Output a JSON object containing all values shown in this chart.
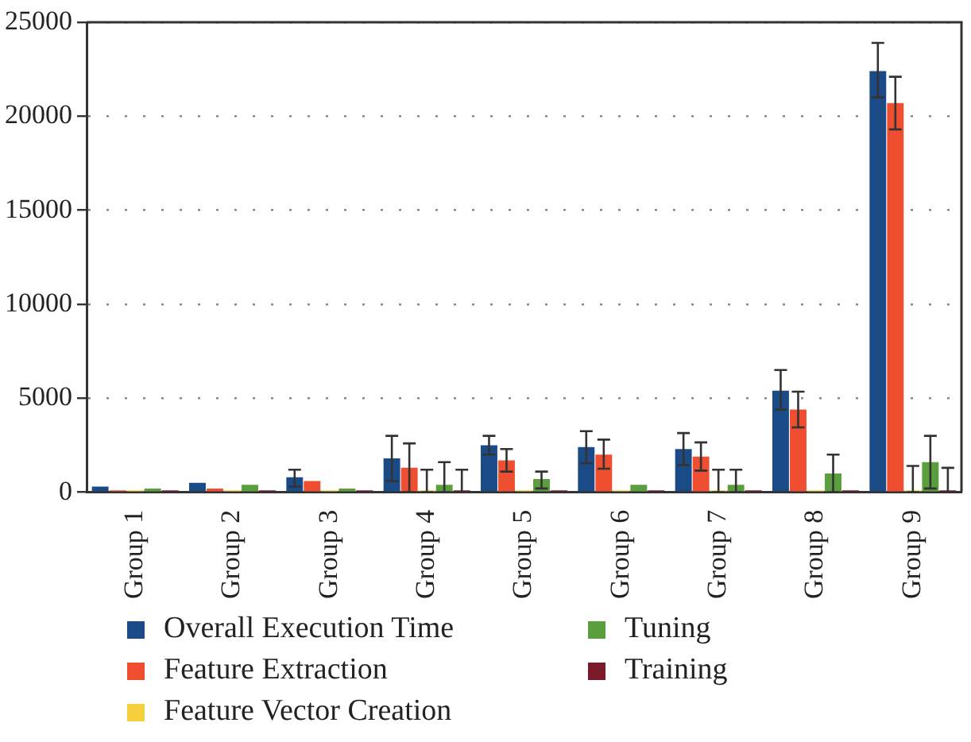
{
  "chart_data": {
    "type": "bar",
    "categories": [
      "Group 1",
      "Group 2",
      "Group 3",
      "Group 4",
      "Group 5",
      "Group 6",
      "Group 7",
      "Group 8",
      "Group 9"
    ],
    "series": [
      {
        "name": "Overall Execution Time",
        "color": "#1a4b87",
        "values": [
          300,
          500,
          800,
          1800,
          2500,
          2400,
          2300,
          5400,
          22400
        ],
        "errors": [
          null,
          null,
          [
            300,
            1200
          ],
          [
            600,
            3000
          ],
          [
            2000,
            3000
          ],
          [
            1550,
            3250
          ],
          [
            1450,
            3150
          ],
          [
            4400,
            6500
          ],
          [
            21000,
            23900
          ]
        ]
      },
      {
        "name": "Feature Extraction",
        "color": "#f04e30",
        "values": [
          100,
          200,
          600,
          1300,
          1700,
          2000,
          1900,
          4400,
          20700
        ],
        "errors": [
          null,
          null,
          null,
          [
            0,
            2600
          ],
          [
            1100,
            2300
          ],
          [
            1250,
            2800
          ],
          [
            1150,
            2650
          ],
          [
            3450,
            5350
          ],
          [
            19300,
            22100
          ]
        ]
      },
      {
        "name": "Feature Vector Creation",
        "color": "#f6d03c",
        "values": [
          100,
          100,
          100,
          100,
          100,
          100,
          100,
          100,
          100
        ],
        "errors": [
          null,
          null,
          null,
          [
            0,
            1200
          ],
          null,
          null,
          [
            0,
            1200
          ],
          null,
          [
            0,
            1400
          ]
        ]
      },
      {
        "name": "Tuning",
        "color": "#5a9e3e",
        "values": [
          200,
          400,
          200,
          400,
          700,
          400,
          400,
          1000,
          1600
        ],
        "errors": [
          null,
          null,
          null,
          [
            0,
            1600
          ],
          [
            200,
            1100
          ],
          null,
          [
            0,
            1200
          ],
          [
            0,
            2000
          ],
          [
            200,
            3000
          ]
        ]
      },
      {
        "name": "Training",
        "color": "#7a1a2a",
        "values": [
          100,
          100,
          100,
          100,
          100,
          100,
          100,
          100,
          100
        ],
        "errors": [
          null,
          null,
          null,
          [
            0,
            1200
          ],
          null,
          null,
          null,
          null,
          [
            0,
            1300
          ]
        ]
      }
    ],
    "ylim": [
      0,
      25000
    ],
    "yticks": [
      0,
      5000,
      10000,
      15000,
      20000,
      25000
    ],
    "grid": "y",
    "legend": "bottom"
  }
}
